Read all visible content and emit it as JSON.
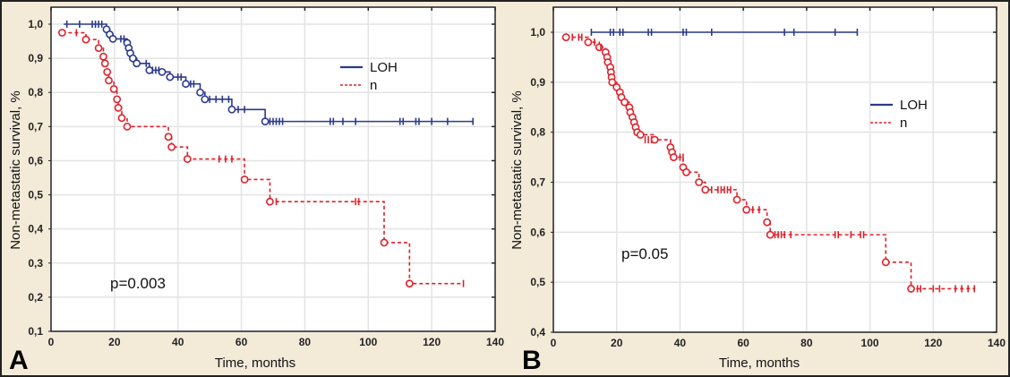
{
  "chart_data": [
    {
      "type": "line",
      "subtype": "kaplan-meier",
      "panel_label": "A",
      "title": "",
      "xlabel": "Time, months",
      "ylabel": "Non-metastatic survival, %",
      "xlim": [
        0,
        140
      ],
      "ylim": [
        0.1,
        1.05
      ],
      "xticks": [
        0,
        20,
        40,
        60,
        80,
        100,
        120,
        140
      ],
      "xtick_labels": [
        "0",
        "20",
        "40",
        "60",
        "80",
        "100",
        "120",
        "140"
      ],
      "yticks": [
        0.1,
        0.2,
        0.3,
        0.4,
        0.5,
        0.6,
        0.7,
        0.8,
        0.9,
        1.0
      ],
      "ytick_labels": [
        "0,1",
        "0,2",
        "0,3",
        "0,4",
        "0,5",
        "0,6",
        "0,7",
        "0,8",
        "0,9",
        "1,0"
      ],
      "grid": true,
      "legend_position": "top-right",
      "annotation": "p=0.003",
      "series": [
        {
          "name": "LOH",
          "color": "#2a3a8c",
          "style": "solid",
          "start": 1.0,
          "start_x": 4,
          "events": [
            [
              17.5,
              0.985
            ],
            [
              18.5,
              0.97
            ],
            [
              19.5,
              0.957
            ],
            [
              24,
              0.945
            ],
            [
              24.5,
              0.93
            ],
            [
              25,
              0.915
            ],
            [
              25.8,
              0.9
            ],
            [
              27,
              0.885
            ],
            [
              31,
              0.865
            ],
            [
              35,
              0.86
            ],
            [
              37.5,
              0.845
            ],
            [
              42.5,
              0.825
            ],
            [
              47,
              0.8
            ],
            [
              48.5,
              0.78
            ],
            [
              57,
              0.75
            ],
            [
              67.5,
              0.715
            ]
          ],
          "censored": [
            [
              5,
              1.0
            ],
            [
              9,
              1.0
            ],
            [
              13,
              1.0
            ],
            [
              14,
              1.0
            ],
            [
              15,
              1.0
            ],
            [
              16,
              1.0
            ],
            [
              22,
              0.957
            ],
            [
              23,
              0.957
            ],
            [
              30,
              0.885
            ],
            [
              32,
              0.865
            ],
            [
              33,
              0.865
            ],
            [
              34,
              0.865
            ],
            [
              40,
              0.845
            ],
            [
              41,
              0.845
            ],
            [
              44,
              0.825
            ],
            [
              45,
              0.825
            ],
            [
              50,
              0.78
            ],
            [
              52,
              0.78
            ],
            [
              54,
              0.78
            ],
            [
              56,
              0.78
            ],
            [
              59,
              0.75
            ],
            [
              61,
              0.75
            ],
            [
              69,
              0.715
            ],
            [
              70,
              0.715
            ],
            [
              71,
              0.715
            ],
            [
              72,
              0.715
            ],
            [
              73,
              0.715
            ],
            [
              88,
              0.715
            ],
            [
              89,
              0.715
            ],
            [
              92,
              0.715
            ],
            [
              96,
              0.715
            ],
            [
              110,
              0.715
            ],
            [
              111,
              0.715
            ],
            [
              115,
              0.715
            ],
            [
              116,
              0.715
            ],
            [
              120,
              0.715
            ],
            [
              125,
              0.715
            ],
            [
              133,
              0.715
            ]
          ],
          "end_x": 133
        },
        {
          "name": "n",
          "color": "#e0202a",
          "style": "dashed",
          "start": 0.975,
          "start_x": 3.5,
          "events": [
            [
              11,
              0.955
            ],
            [
              15,
              0.93
            ],
            [
              16.5,
              0.905
            ],
            [
              17,
              0.885
            ],
            [
              17.7,
              0.86
            ],
            [
              18.2,
              0.835
            ],
            [
              19.8,
              0.81
            ],
            [
              20.8,
              0.78
            ],
            [
              21.2,
              0.755
            ],
            [
              22.3,
              0.725
            ],
            [
              24,
              0.7
            ],
            [
              37,
              0.67
            ],
            [
              38,
              0.64
            ],
            [
              43,
              0.605
            ],
            [
              61,
              0.545
            ],
            [
              69,
              0.48
            ],
            [
              105,
              0.36
            ],
            [
              113,
              0.24
            ]
          ],
          "censored": [
            [
              8,
              0.975
            ],
            [
              53,
              0.605
            ],
            [
              55,
              0.605
            ],
            [
              57,
              0.605
            ],
            [
              71,
              0.48
            ],
            [
              96,
              0.48
            ],
            [
              97,
              0.48
            ],
            [
              130,
              0.24
            ]
          ],
          "end_x": 130
        }
      ]
    },
    {
      "type": "line",
      "subtype": "kaplan-meier",
      "panel_label": "B",
      "title": "",
      "xlabel": "Time, months",
      "ylabel": "Non-metastatic survival, %",
      "xlim": [
        0,
        140
      ],
      "ylim": [
        0.4,
        1.04
      ],
      "xticks": [
        0,
        20,
        40,
        60,
        80,
        100,
        120,
        140
      ],
      "xtick_labels": [
        "0",
        "20",
        "40",
        "60",
        "80",
        "100",
        "120",
        "140"
      ],
      "yticks": [
        0.4,
        0.5,
        0.6,
        0.7,
        0.8,
        0.9,
        1.0
      ],
      "ytick_labels": [
        "0,4",
        "0,5",
        "0,6",
        "0,7",
        "0,8",
        "0,9",
        "1,0"
      ],
      "grid": true,
      "legend_position": "right",
      "annotation": "p=0.05",
      "series": [
        {
          "name": "LOH",
          "color": "#2a3a8c",
          "style": "solid",
          "start": 1.0,
          "start_x": 12,
          "events": [],
          "censored": [
            [
              12,
              1.0
            ],
            [
              18,
              1.0
            ],
            [
              19,
              1.0
            ],
            [
              21,
              1.0
            ],
            [
              22,
              1.0
            ],
            [
              30,
              1.0
            ],
            [
              31,
              1.0
            ],
            [
              41,
              1.0
            ],
            [
              42,
              1.0
            ],
            [
              50,
              1.0
            ],
            [
              73,
              1.0
            ],
            [
              76,
              1.0
            ],
            [
              89,
              1.0
            ],
            [
              96,
              1.0
            ]
          ],
          "end_x": 96
        },
        {
          "name": "n",
          "color": "#e0202a",
          "style": "dashed",
          "start": 0.99,
          "start_x": 4,
          "events": [
            [
              11,
              0.98
            ],
            [
              14.5,
              0.97
            ],
            [
              16.5,
              0.96
            ],
            [
              17,
              0.95
            ],
            [
              17.2,
              0.94
            ],
            [
              18,
              0.93
            ],
            [
              18.2,
              0.92
            ],
            [
              18.4,
              0.91
            ],
            [
              18.6,
              0.9
            ],
            [
              20,
              0.89
            ],
            [
              21,
              0.88
            ],
            [
              21.5,
              0.87
            ],
            [
              22.5,
              0.86
            ],
            [
              24,
              0.85
            ],
            [
              24.3,
              0.84
            ],
            [
              25,
              0.83
            ],
            [
              25.5,
              0.82
            ],
            [
              26,
              0.81
            ],
            [
              26.5,
              0.8
            ],
            [
              27.5,
              0.795
            ],
            [
              32,
              0.785
            ],
            [
              37,
              0.77
            ],
            [
              37.5,
              0.76
            ],
            [
              38,
              0.75
            ],
            [
              41,
              0.73
            ],
            [
              42,
              0.72
            ],
            [
              46,
              0.7
            ],
            [
              48,
              0.685
            ],
            [
              58,
              0.665
            ],
            [
              61,
              0.645
            ],
            [
              67.5,
              0.62
            ],
            [
              68.5,
              0.595
            ],
            [
              105,
              0.54
            ],
            [
              113,
              0.487
            ]
          ],
          "censored": [
            [
              6,
              0.99
            ],
            [
              8,
              0.99
            ],
            [
              9,
              0.99
            ],
            [
              13,
              0.98
            ],
            [
              15,
              0.97
            ],
            [
              29,
              0.785
            ],
            [
              30,
              0.785
            ],
            [
              31,
              0.785
            ],
            [
              40,
              0.75
            ],
            [
              41,
              0.75
            ],
            [
              50,
              0.685
            ],
            [
              52,
              0.685
            ],
            [
              53,
              0.685
            ],
            [
              54,
              0.685
            ],
            [
              55,
              0.685
            ],
            [
              56,
              0.685
            ],
            [
              63,
              0.645
            ],
            [
              65,
              0.645
            ],
            [
              70,
              0.595
            ],
            [
              71,
              0.595
            ],
            [
              72,
              0.595
            ],
            [
              73,
              0.595
            ],
            [
              75,
              0.595
            ],
            [
              89,
              0.595
            ],
            [
              90,
              0.595
            ],
            [
              94,
              0.595
            ],
            [
              97,
              0.595
            ],
            [
              98,
              0.595
            ],
            [
              115,
              0.487
            ],
            [
              116,
              0.487
            ],
            [
              120,
              0.487
            ],
            [
              122,
              0.487
            ],
            [
              127,
              0.487
            ],
            [
              129,
              0.487
            ],
            [
              131,
              0.487
            ],
            [
              133,
              0.487
            ]
          ],
          "end_x": 133
        }
      ]
    }
  ]
}
